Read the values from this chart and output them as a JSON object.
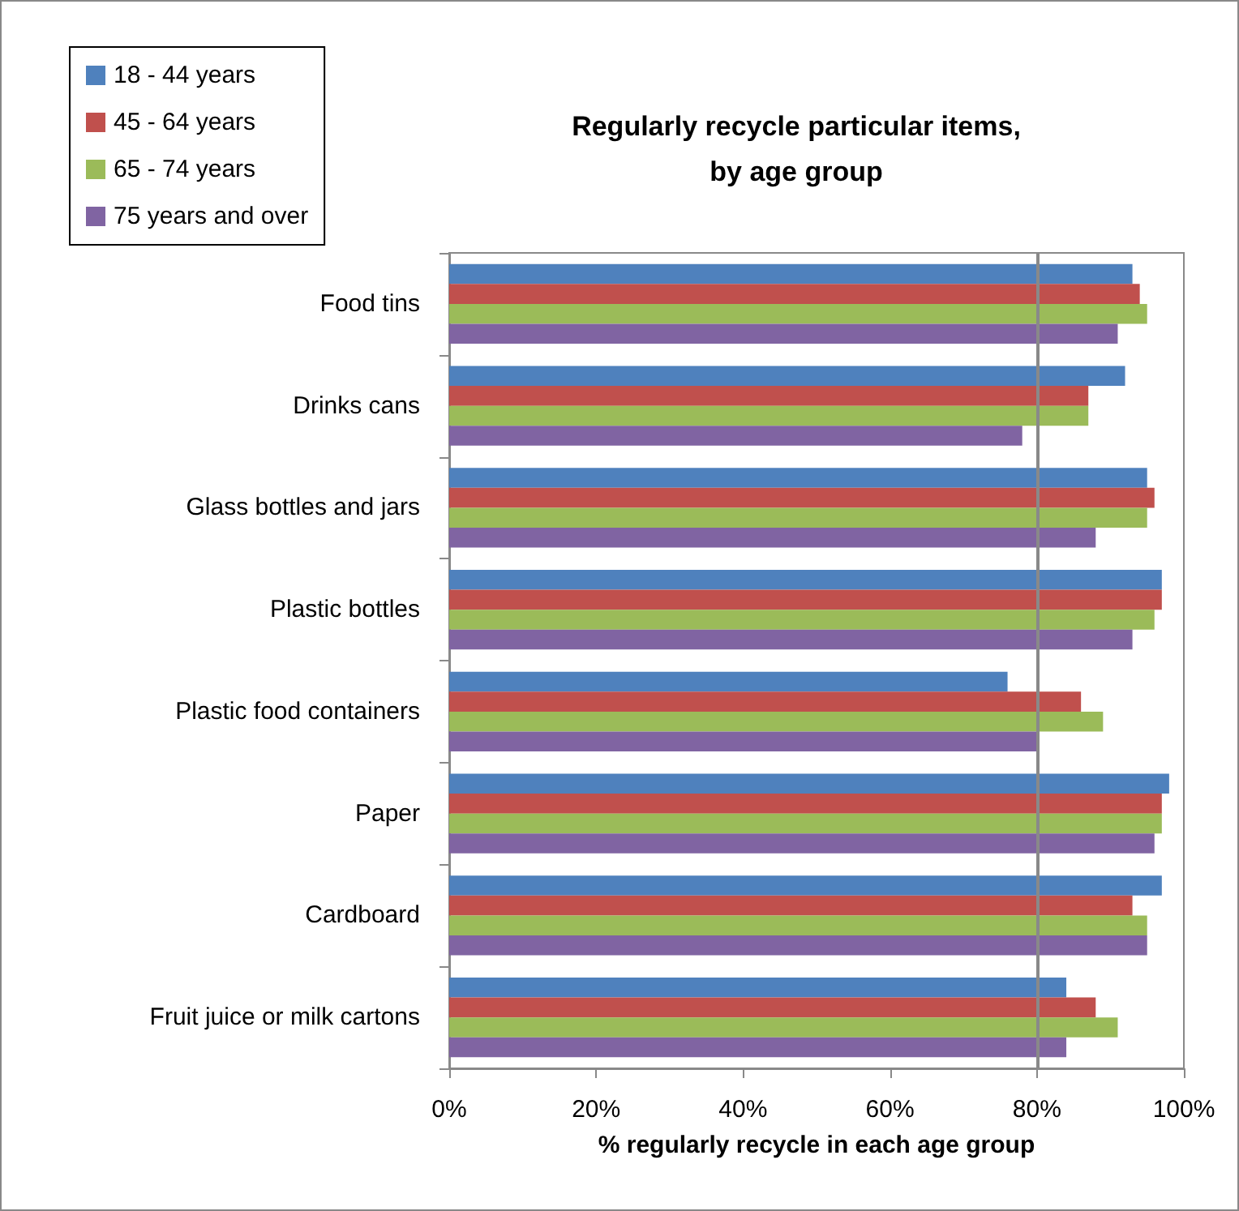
{
  "chart_data": {
    "type": "bar",
    "orientation": "horizontal",
    "title": "Regularly recycle particular items,\nby age group",
    "xlabel": "% regularly recycle in each age group",
    "categories": [
      "Food tins",
      "Drinks cans",
      "Glass bottles and jars",
      "Plastic bottles",
      "Plastic food containers",
      "Paper",
      "Cardboard",
      "Fruit juice or milk cartons"
    ],
    "series": [
      {
        "name": "18 - 44 years",
        "color": "#4f81bd",
        "values": [
          93,
          92,
          95,
          97,
          76,
          98,
          97,
          84
        ]
      },
      {
        "name": "45 - 64 years",
        "color": "#c0504d",
        "values": [
          94,
          87,
          96,
          97,
          86,
          97,
          93,
          88
        ]
      },
      {
        "name": "65 - 74 years",
        "color": "#9bbb59",
        "values": [
          95,
          87,
          95,
          96,
          89,
          97,
          95,
          91
        ]
      },
      {
        "name": "75 years and over",
        "color": "#8064a2",
        "values": [
          91,
          78,
          88,
          93,
          80,
          96,
          95,
          84
        ]
      }
    ],
    "xlim": [
      0,
      100
    ],
    "xticks": [
      {
        "value": 0,
        "label": "0%"
      },
      {
        "value": 20,
        "label": "20%"
      },
      {
        "value": 40,
        "label": "40%"
      },
      {
        "value": 60,
        "label": "60%"
      },
      {
        "value": 80,
        "label": "80%"
      },
      {
        "value": 100,
        "label": "100%"
      }
    ],
    "ref_lines": [
      {
        "axis": "x",
        "value": 80,
        "color": "#898989"
      }
    ],
    "grid": false,
    "legend": "top left"
  }
}
